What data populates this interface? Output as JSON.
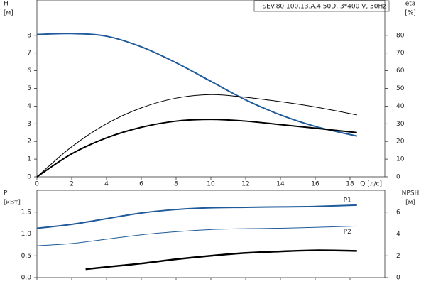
{
  "chart_data": [
    {
      "type": "line",
      "title": "SEV.80.100.13.A.4.50D, 3*400 V, 50Hz",
      "ylabel": "H",
      "yunit": "[м]",
      "y2label": "eta",
      "y2unit": "[%]",
      "xlabel": "Q [л/с]",
      "xlim": [
        0,
        20
      ],
      "xticks": [
        0,
        2,
        4,
        6,
        8,
        10,
        12,
        14,
        16,
        18
      ],
      "ylim": [
        0,
        10
      ],
      "yticks": [
        0,
        1,
        2,
        3,
        4,
        5,
        6,
        7,
        8
      ],
      "y2lim": [
        0,
        100
      ],
      "y2ticks": [
        0,
        10,
        20,
        30,
        40,
        50,
        60,
        70,
        80
      ],
      "series": [
        {
          "color": "#1f5a9a",
          "x": [
            0,
            2,
            4,
            6,
            8,
            10,
            12,
            14,
            16,
            18.4
          ],
          "values": [
            8.05,
            8.1,
            7.95,
            7.35,
            6.45,
            5.4,
            4.35,
            3.5,
            2.85,
            2.3
          ]
        },
        {
          "color": "#000000",
          "axis": "y2",
          "x": [
            0,
            2,
            4,
            6,
            8,
            10,
            12,
            14,
            16,
            18.4
          ],
          "values": [
            0,
            17,
            30,
            39,
            44.5,
            46.5,
            45,
            42.5,
            39.5,
            35
          ]
        },
        {
          "color": "#000000",
          "axis": "y2",
          "x": [
            0,
            2,
            4,
            6,
            8,
            10,
            12,
            14,
            16,
            18.4
          ],
          "values": [
            0,
            13,
            22,
            28,
            31.5,
            32.5,
            31.5,
            29.5,
            27.5,
            25
          ]
        }
      ]
    },
    {
      "type": "line",
      "ylabel": "P",
      "yunit": "[кВт]",
      "y2label": "NPSH",
      "y2unit": "[м]",
      "xlim": [
        0,
        20
      ],
      "xticks": [
        0,
        2,
        4,
        6,
        8,
        10,
        12,
        14,
        16,
        18
      ],
      "ylim": [
        0,
        2
      ],
      "yticks": [
        {
          "value": 0,
          "label": "0.0"
        },
        {
          "value": 0.5,
          "label": "0.5"
        },
        {
          "value": 1,
          "label": "1.0"
        },
        {
          "value": 1.5,
          "label": "1.5"
        }
      ],
      "y2lim": [
        0,
        8
      ],
      "y2ticks": [
        0,
        2,
        4,
        6
      ],
      "series": [
        {
          "name": "P1",
          "color": "#1f5a9a",
          "x": [
            0,
            2,
            4,
            6,
            8,
            10,
            12,
            14,
            16,
            18.4
          ],
          "values": [
            1.13,
            1.22,
            1.35,
            1.48,
            1.56,
            1.6,
            1.61,
            1.62,
            1.63,
            1.66
          ]
        },
        {
          "name": "P2",
          "color": "#1f5a9a",
          "x": [
            0,
            2,
            4,
            6,
            8,
            10,
            12,
            14,
            16,
            18.4
          ],
          "values": [
            0.73,
            0.78,
            0.88,
            0.98,
            1.05,
            1.1,
            1.12,
            1.13,
            1.15,
            1.18
          ]
        },
        {
          "color": "#000000",
          "axis": "y2",
          "x": [
            2.8,
            4,
            6,
            8,
            10,
            12,
            14,
            16,
            18.4
          ],
          "values": [
            0.77,
            0.97,
            1.29,
            1.68,
            2.0,
            2.26,
            2.4,
            2.5,
            2.45
          ]
        }
      ]
    }
  ]
}
